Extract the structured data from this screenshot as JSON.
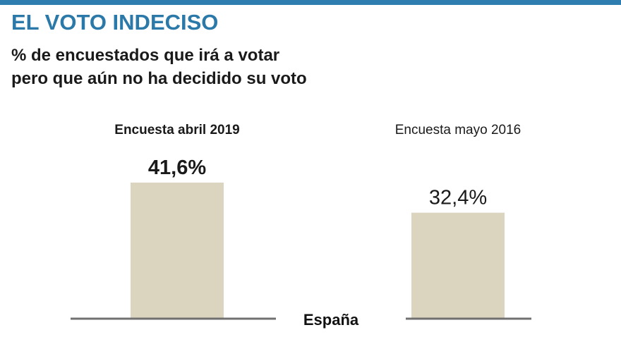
{
  "header": {
    "title": "EL VOTO INDECISO",
    "subtitle_line1": "% de encuestados que irá a votar",
    "subtitle_line2": "pero que aún no ha decidido su voto"
  },
  "colors": {
    "accent": "#2a79a8",
    "topbar": "#2e7fb0",
    "bar": "#dbd4bf",
    "baseline": "#707070",
    "text": "#1a1a1a"
  },
  "chart_data": {
    "type": "bar",
    "title": "EL VOTO INDECISO",
    "subtitle": "% de encuestados que irá a votar pero que aún no ha decidido su voto",
    "categories": [
      "Encuesta abril 2019",
      "Encuesta mayo 2016"
    ],
    "values": [
      41.6,
      32.4
    ],
    "value_labels": [
      "41,6%",
      "32,4%"
    ],
    "highlight": [
      true,
      false
    ],
    "xlabel": "España",
    "ylabel": "",
    "ylim": [
      0,
      45
    ],
    "grid": false,
    "legend": "none"
  }
}
